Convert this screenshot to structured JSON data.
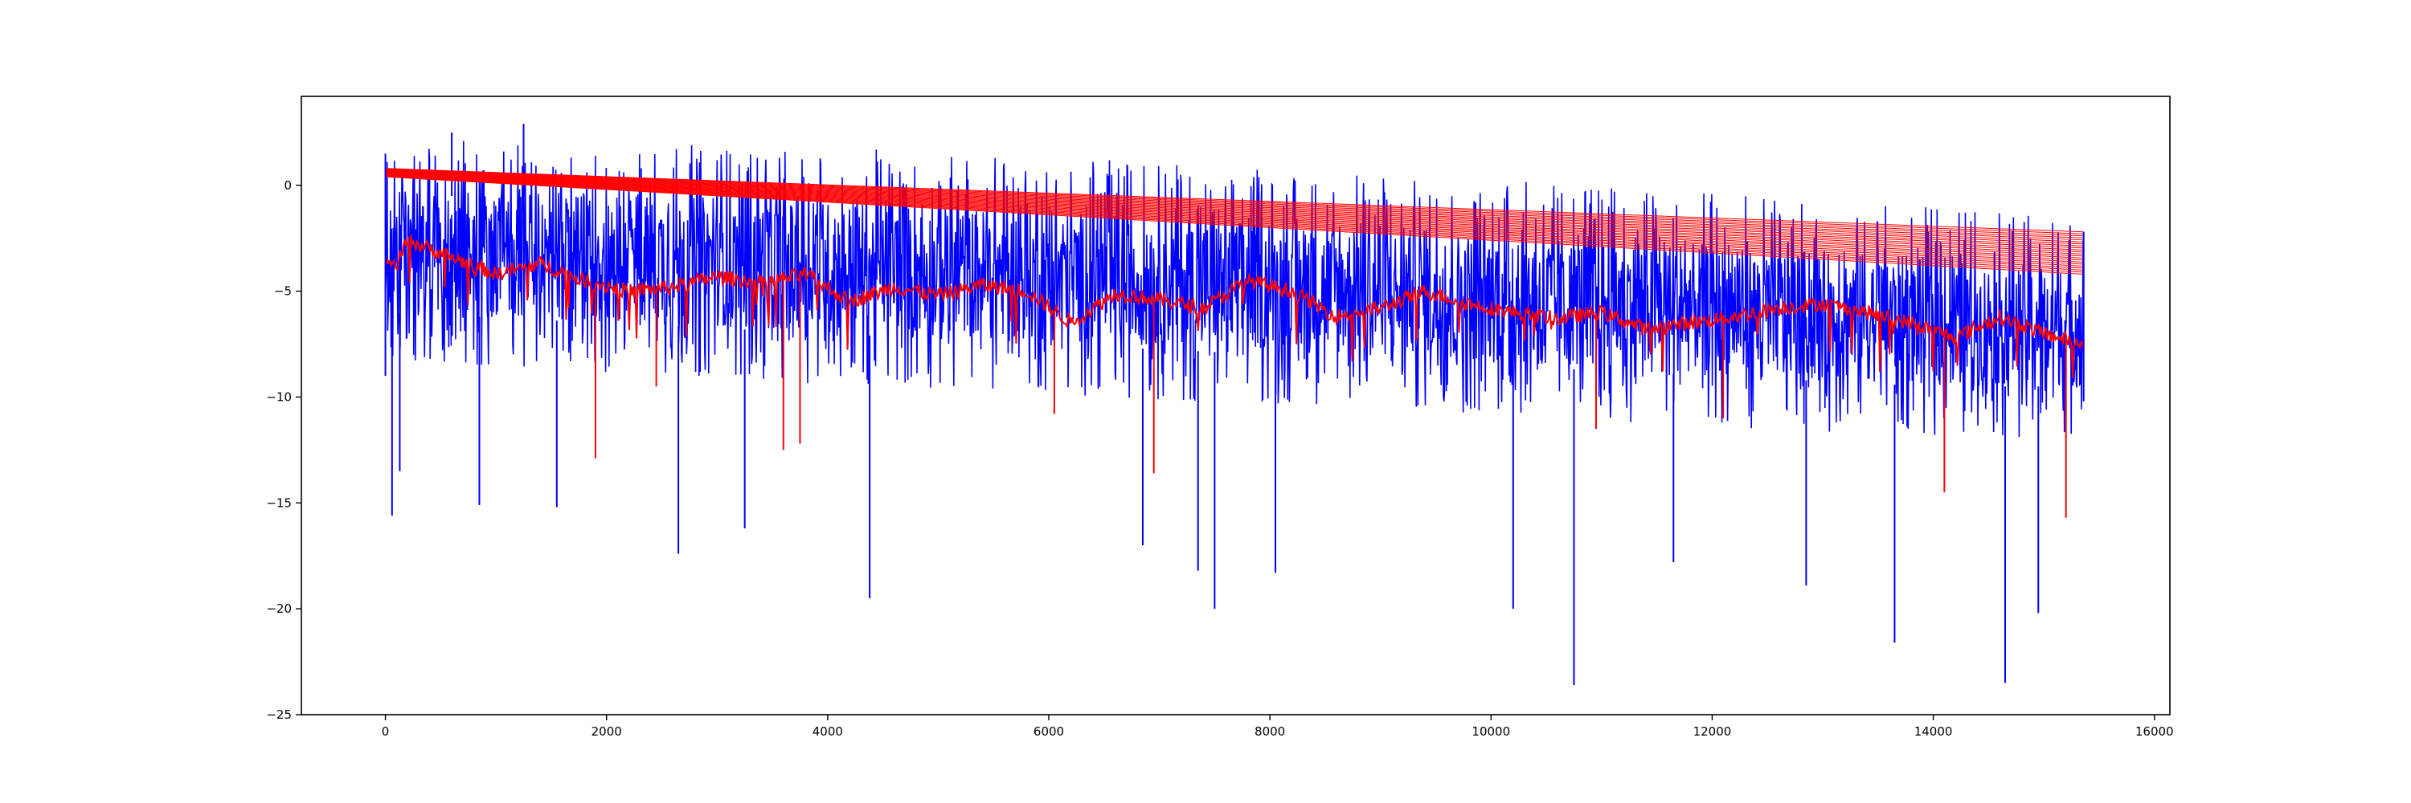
{
  "chart_data": {
    "type": "line",
    "title": "",
    "xlabel": "",
    "ylabel": "",
    "xlim": [
      -760,
      16140
    ],
    "ylim": [
      -25,
      4.2
    ],
    "x_ticks": [
      0,
      2000,
      4000,
      6000,
      8000,
      10000,
      12000,
      14000,
      16000
    ],
    "x_tick_labels": [
      "0",
      "2000",
      "4000",
      "6000",
      "8000",
      "10000",
      "12000",
      "14000",
      "16000"
    ],
    "y_ticks": [
      0,
      -5,
      -10,
      -15,
      -20,
      -25
    ],
    "y_tick_labels": [
      "0",
      "−5",
      "−10",
      "−15",
      "−20",
      "−25"
    ],
    "grid": false,
    "legend": "none",
    "x_range": [
      0,
      15360
    ],
    "series": [
      {
        "color": "#0000ff",
        "description": "noisy high-frequency signal",
        "band_points": [
          {
            "x": 0,
            "low": -9,
            "high": 1.5
          },
          {
            "x": 2000,
            "low": -9.5,
            "high": 1.5
          },
          {
            "x": 4000,
            "low": -10,
            "high": 1.2
          },
          {
            "x": 6000,
            "low": -10.5,
            "high": 0.8
          },
          {
            "x": 8000,
            "low": -11,
            "high": 0.2
          },
          {
            "x": 10000,
            "low": -11.5,
            "high": -0.3
          },
          {
            "x": 12000,
            "low": -12,
            "high": -0.9
          },
          {
            "x": 14000,
            "low": -12.5,
            "high": -1.5
          },
          {
            "x": 15360,
            "low": -12.5,
            "high": -2.2
          }
        ],
        "spikes": [
          {
            "x": 60,
            "y": -15.6
          },
          {
            "x": 130,
            "y": -13.5
          },
          {
            "x": 850,
            "y": -15.1
          },
          {
            "x": 1550,
            "y": -15.2
          },
          {
            "x": 2650,
            "y": -17.4
          },
          {
            "x": 3250,
            "y": -16.2
          },
          {
            "x": 4380,
            "y": -19.5
          },
          {
            "x": 6850,
            "y": -17
          },
          {
            "x": 7350,
            "y": -18.2
          },
          {
            "x": 7500,
            "y": -20
          },
          {
            "x": 8050,
            "y": -18.3
          },
          {
            "x": 10200,
            "y": -20
          },
          {
            "x": 10750,
            "y": -23.6
          },
          {
            "x": 11650,
            "y": -17.8
          },
          {
            "x": 12850,
            "y": -18.9
          },
          {
            "x": 13650,
            "y": -21.6
          },
          {
            "x": 14650,
            "y": -23.5
          },
          {
            "x": 14950,
            "y": -20.2
          },
          {
            "x": 1250,
            "y": 2.9
          },
          {
            "x": 600,
            "y": 2.5
          }
        ]
      },
      {
        "color": "#ff0000",
        "description": "smoothed envelope lines",
        "upper_fan": {
          "x": [
            0,
            15360
          ],
          "top": [
            0.8,
            -2.2
          ],
          "bottom": [
            0.4,
            -4.2
          ],
          "line_count": 22
        },
        "lower_curve": [
          {
            "x": 0,
            "y": -3.5
          },
          {
            "x": 100,
            "y": -3.8
          },
          {
            "x": 200,
            "y": -2.6
          },
          {
            "x": 400,
            "y": -3.0
          },
          {
            "x": 600,
            "y": -3.4
          },
          {
            "x": 800,
            "y": -3.8
          },
          {
            "x": 1000,
            "y": -4.2
          },
          {
            "x": 1400,
            "y": -3.7
          },
          {
            "x": 1800,
            "y": -4.5
          },
          {
            "x": 2200,
            "y": -5.0
          },
          {
            "x": 2600,
            "y": -4.8
          },
          {
            "x": 3000,
            "y": -4.3
          },
          {
            "x": 3400,
            "y": -4.6
          },
          {
            "x": 3800,
            "y": -4.2
          },
          {
            "x": 4200,
            "y": -5.5
          },
          {
            "x": 4600,
            "y": -4.8
          },
          {
            "x": 5000,
            "y": -5.2
          },
          {
            "x": 5400,
            "y": -4.7
          },
          {
            "x": 5800,
            "y": -5.0
          },
          {
            "x": 6200,
            "y": -6.5
          },
          {
            "x": 6600,
            "y": -5.1
          },
          {
            "x": 7000,
            "y": -5.4
          },
          {
            "x": 7400,
            "y": -5.8
          },
          {
            "x": 7800,
            "y": -4.5
          },
          {
            "x": 8200,
            "y": -5.0
          },
          {
            "x": 8600,
            "y": -6.2
          },
          {
            "x": 9000,
            "y": -5.8
          },
          {
            "x": 9400,
            "y": -5.0
          },
          {
            "x": 9800,
            "y": -5.6
          },
          {
            "x": 10200,
            "y": -6.0
          },
          {
            "x": 10600,
            "y": -6.3
          },
          {
            "x": 11000,
            "y": -6.0
          },
          {
            "x": 11400,
            "y": -6.8
          },
          {
            "x": 11800,
            "y": -6.5
          },
          {
            "x": 12200,
            "y": -6.2
          },
          {
            "x": 12600,
            "y": -5.8
          },
          {
            "x": 13000,
            "y": -5.6
          },
          {
            "x": 13400,
            "y": -6.0
          },
          {
            "x": 13800,
            "y": -6.5
          },
          {
            "x": 14200,
            "y": -7.2
          },
          {
            "x": 14600,
            "y": -6.2
          },
          {
            "x": 15000,
            "y": -7.0
          },
          {
            "x": 15360,
            "y": -7.5
          }
        ],
        "dips": [
          {
            "x": 1900,
            "y": -12.9
          },
          {
            "x": 2450,
            "y": -9.5
          },
          {
            "x": 3600,
            "y": -12.5
          },
          {
            "x": 3750,
            "y": -12.2
          },
          {
            "x": 6950,
            "y": -13.6
          },
          {
            "x": 6050,
            "y": -10.8
          },
          {
            "x": 10950,
            "y": -11.5
          },
          {
            "x": 12100,
            "y": -11
          },
          {
            "x": 14100,
            "y": -14.5
          },
          {
            "x": 15200,
            "y": -15.7
          }
        ]
      }
    ]
  }
}
